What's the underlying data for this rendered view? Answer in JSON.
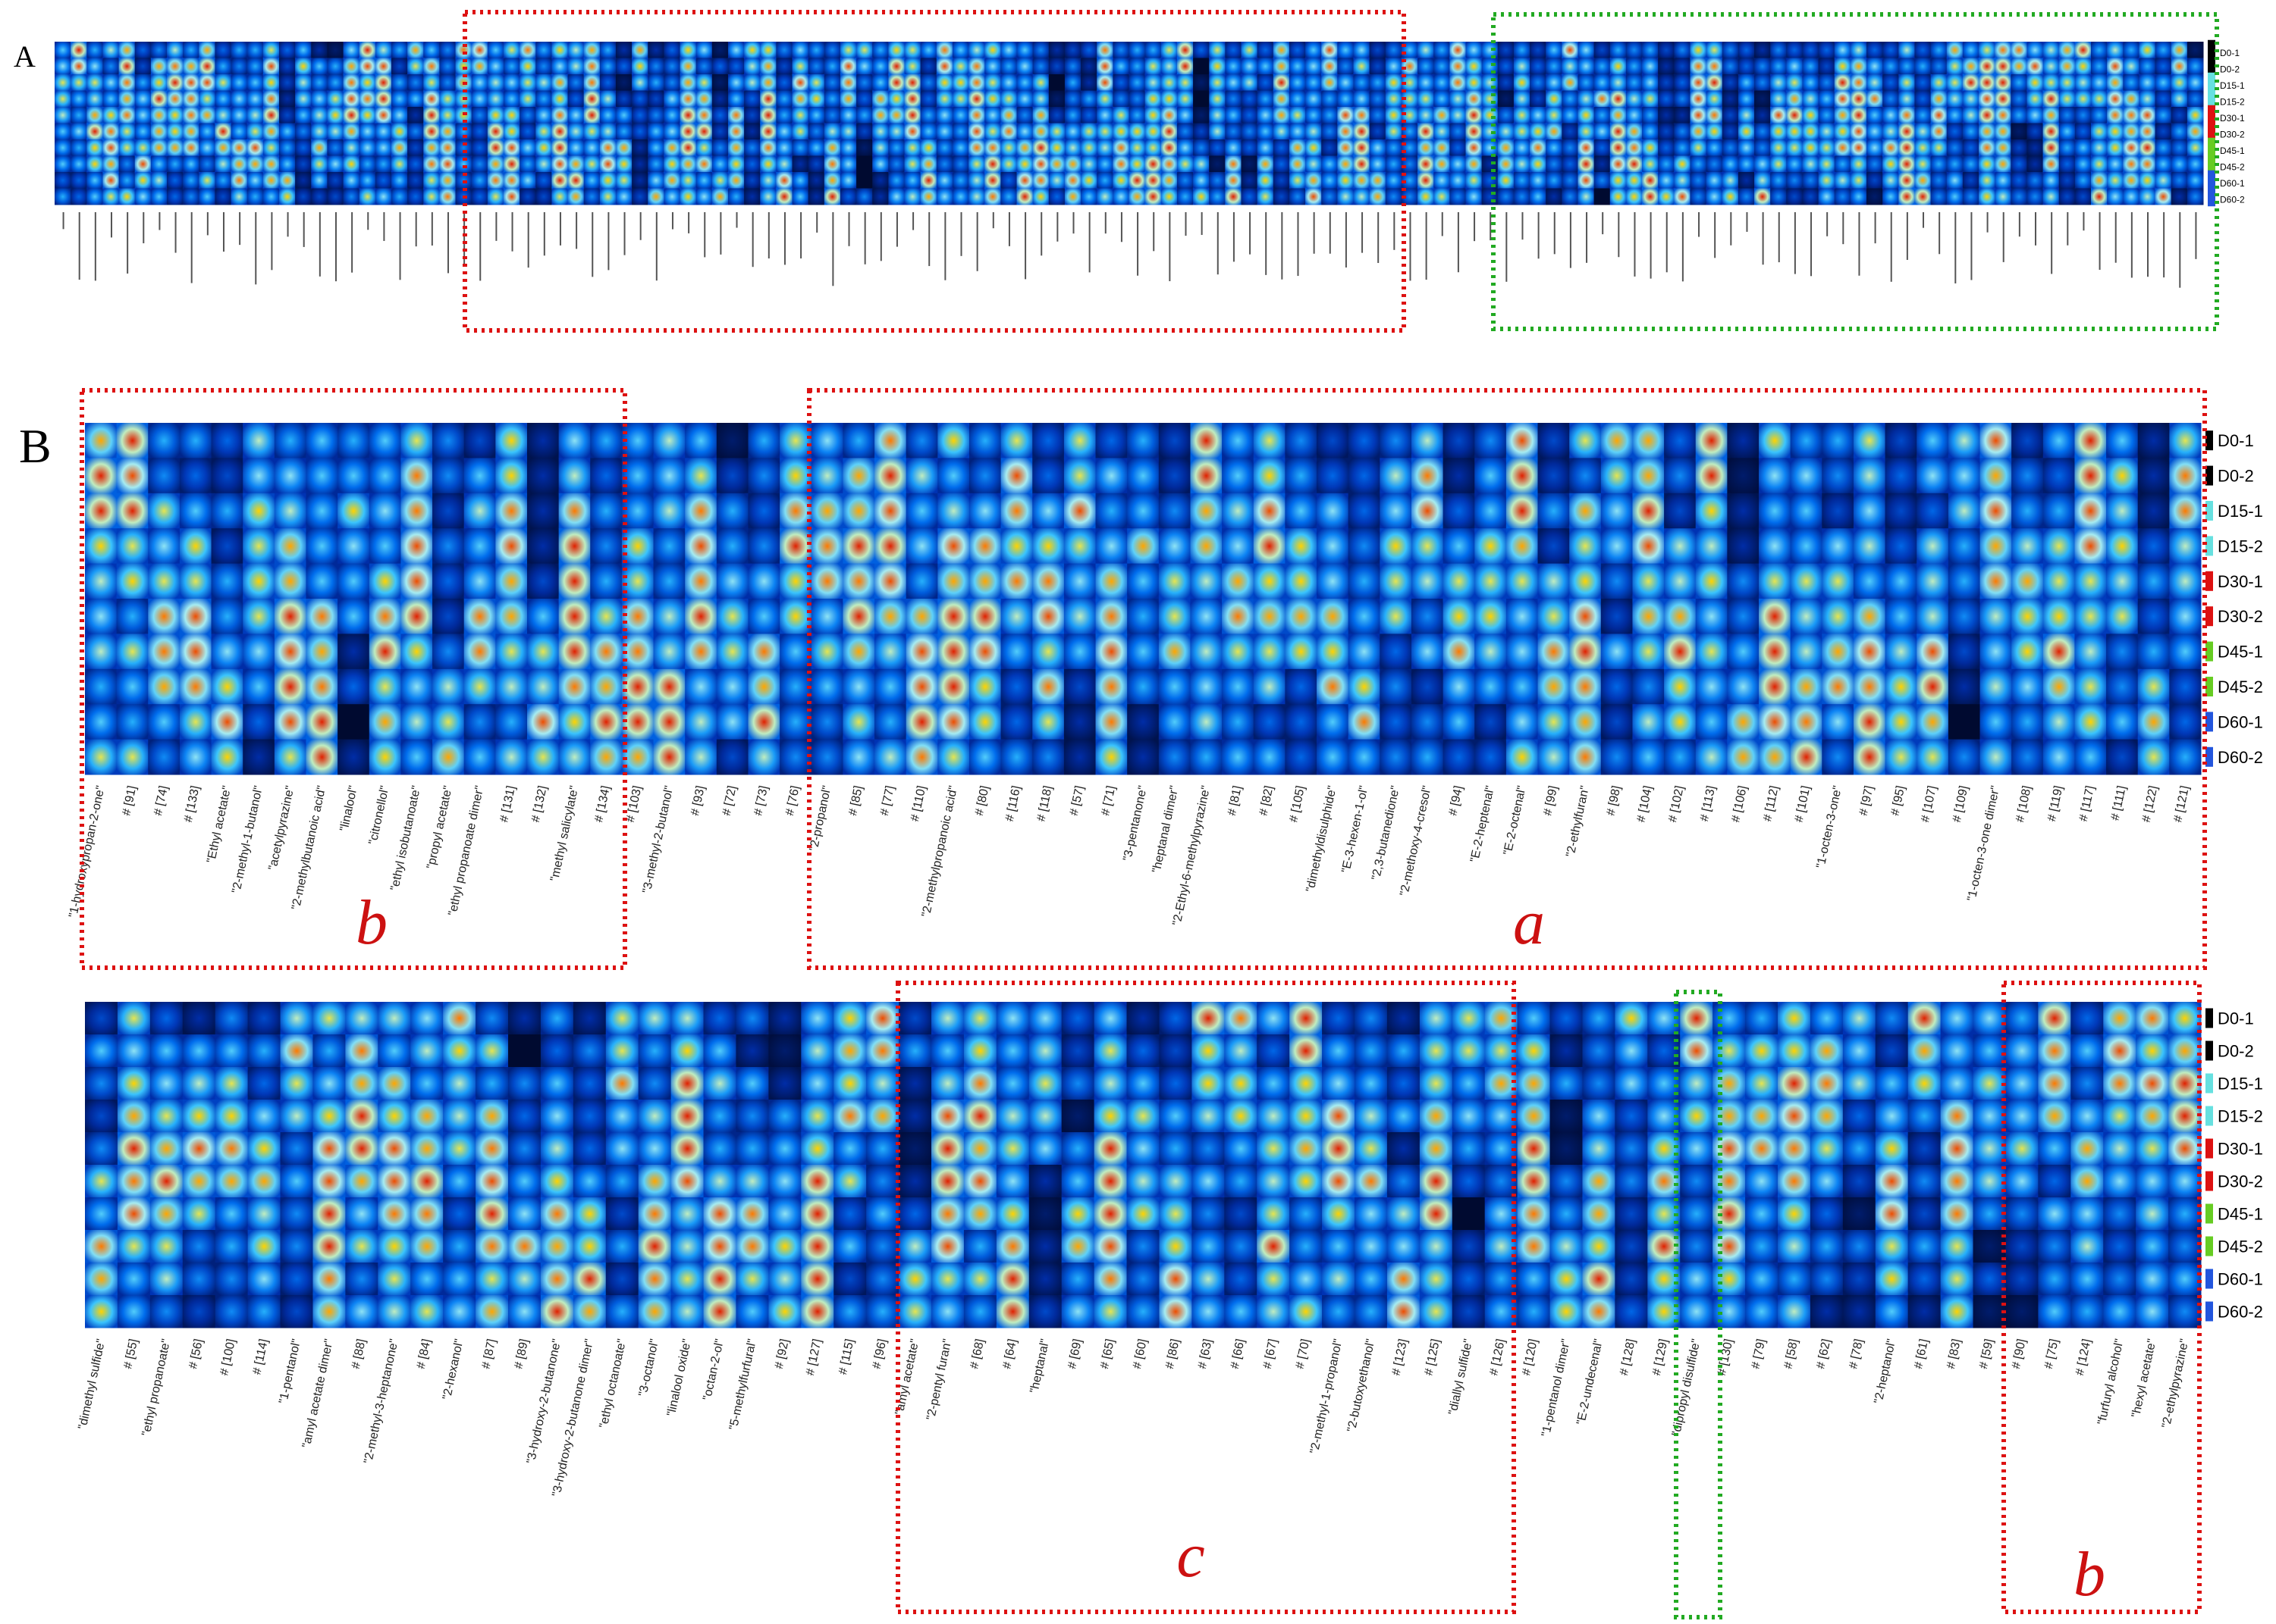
{
  "chart_data": {
    "type": "heatmap",
    "title": "",
    "panels": [
      {
        "label": "A"
      },
      {
        "label": "B"
      }
    ],
    "samples": [
      {
        "name": "D0-1",
        "color": "#000000"
      },
      {
        "name": "D0-2",
        "color": "#000000"
      },
      {
        "name": "D15-1",
        "color": "#66e0e0"
      },
      {
        "name": "D15-2",
        "color": "#66e0e0"
      },
      {
        "name": "D30-1",
        "color": "#dd1111"
      },
      {
        "name": "D30-2",
        "color": "#dd1111"
      },
      {
        "name": "D45-1",
        "color": "#66cc22"
      },
      {
        "name": "D45-2",
        "color": "#66cc22"
      },
      {
        "name": "D60-1",
        "color": "#2255dd"
      },
      {
        "name": "D60-2",
        "color": "#2255dd"
      }
    ],
    "heatmaps": [
      {
        "name": "B-top",
        "columns": [
          "\"1-hydroxypropan-2-one\"",
          "# [91]",
          "# [74]",
          "# [133]",
          "\"Ethyl acetate\"",
          "\"2-methyl-1-butanol\"",
          "\"acetylpyrazine\"",
          "\"2-methylbutanoic acid\"",
          "\"linalool\"",
          "\"citronellol\"",
          "\"ethyl isobutanoate\"",
          "\"propyl acetate\"",
          "\"ethyl propanoate dimer\"",
          "# [131]",
          "# [132]",
          "\"methyl salicylate\"",
          "# [134]",
          "# [103]",
          "\"3-methyl-2-butanol\"",
          "# [93]",
          "# [72]",
          "# [73]",
          "# [76]",
          "\"2-propanol\"",
          "# [85]",
          "# [77]",
          "# [110]",
          "\"2-methylpropanoic acid\"",
          "# [80]",
          "# [116]",
          "# [118]",
          "# [57]",
          "# [71]",
          "\"3-pentanone\"",
          "\"heptanal dimer\"",
          "\"2-Ethyl-6-methylpyrazine\"",
          "# [81]",
          "# [82]",
          "# [105]",
          "\"dimethyldisulphide\"",
          "\"E-3-hexen-1-ol\"",
          "\"2,3-butanedione\"",
          "\"2-methoxy-4-cresol\"",
          "# [94]",
          "\"E-2-heptenal\"",
          "\"E-2-octenal\"",
          "# [99]",
          "\"2-ethylfuran\"",
          "# [98]",
          "# [104]",
          "# [102]",
          "# [113]",
          "# [106]",
          "# [112]",
          "# [101]",
          "\"1-octen-3-one\"",
          "# [97]",
          "# [95]",
          "# [107]",
          "# [109]",
          "\"1-octen-3-one dimer\"",
          "# [108]",
          "# [119]",
          "# [117]",
          "# [111]",
          "# [122]",
          "# [121]"
        ],
        "boxes": [
          {
            "letter": "b",
            "color": "#dd1111"
          },
          {
            "letter": "a",
            "color": "#dd1111"
          }
        ]
      },
      {
        "name": "B-bottom",
        "columns": [
          "\"dimethyl sulfide\"",
          "# [55]",
          "\"ethyl propanoate\"",
          "# [56]",
          "# [100]",
          "# [114]",
          "\"1-pentanol\"",
          "\"amyl acetate dimer\"",
          "# [88]",
          "\"2-methyl-3-heptanone\"",
          "# [84]",
          "\"2-hexanol\"",
          "# [87]",
          "# [89]",
          "\"3-hydroxy-2-butanone\"",
          "\"3-hydroxy-2-butanone dimer\"",
          "\"ethyl octanoate\"",
          "\"3-octanol\"",
          "\"linalool oxide\"",
          "\"octan-2-ol\"",
          "\"5-methylfurfural\"",
          "# [92]",
          "# [127]",
          "# [115]",
          "# [96]",
          "\"amyl acetate\"",
          "\"2-pentyl furan\"",
          "# [68]",
          "# [64]",
          "\"heptanal\"",
          "# [69]",
          "# [65]",
          "# [60]",
          "# [86]",
          "# [63]",
          "# [66]",
          "# [67]",
          "# [70]",
          "\"2-methyl-1-propanol\"",
          "\"2-butoxyethanol\"",
          "# [123]",
          "# [125]",
          "\"diallyl sulfide\"",
          "# [126]",
          "# [120]",
          "\"1-pentanol dimer\"",
          "\"E-2-undecenal\"",
          "# [128]",
          "# [129]",
          "\"dipropyl disulfide\"",
          "# [130]",
          "# [79]",
          "# [58]",
          "# [62]",
          "# [78]",
          "\"2-heptanol\"",
          "# [61]",
          "# [83]",
          "# [59]",
          "# [90]",
          "# [75]",
          "# [124]",
          "\"furfuryl alcohol\"",
          "\"hexyl acetate\"",
          "\"2-ethylpyrazine\""
        ],
        "boxes": [
          {
            "letter": "c",
            "color": "#dd1111"
          },
          {
            "letter": "",
            "color": "#22aa22"
          },
          {
            "letter": "b",
            "color": "#dd1111"
          }
        ]
      }
    ],
    "overview_A": {
      "columns_count": 134,
      "boxes": [
        {
          "color": "#dd1111"
        },
        {
          "color": "#22aa22"
        }
      ]
    },
    "colormap": [
      "#000a30",
      "#0030b0",
      "#0070f0",
      "#30c0ff",
      "#b0f0f0",
      "#ffe000",
      "#ff8000",
      "#e02000"
    ]
  }
}
